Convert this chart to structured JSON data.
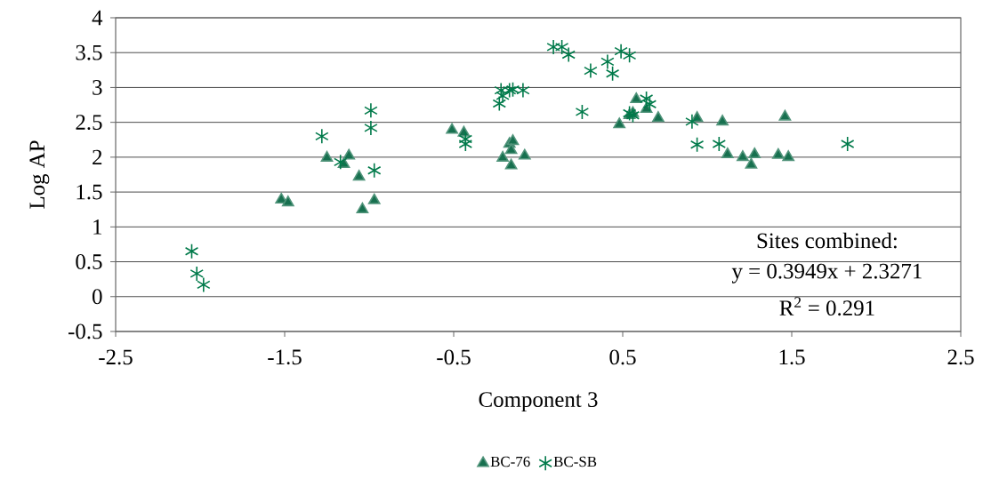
{
  "chart_data": {
    "type": "scatter",
    "xlabel": "Component 3",
    "ylabel": "Log AP",
    "xlim": [
      -2.5,
      2.5
    ],
    "xticks": [
      -2.5,
      -1.5,
      -0.5,
      0.5,
      1.5,
      2.5
    ],
    "ylim": [
      -0.5,
      4
    ],
    "yticks": [
      -0.5,
      0,
      0.5,
      1,
      1.5,
      2,
      2.5,
      3,
      3.5,
      4
    ],
    "grid": "y",
    "legend": "bottom",
    "annotations": [
      "Sites combined:",
      "y = 0.3949x + 2.3271",
      "R$^{2}$ = 0.291"
    ],
    "series": [
      {
        "name": "BC-76",
        "color": "#17704f",
        "marker": "triangle",
        "x": [
          -1.52,
          -1.48,
          -1.25,
          -1.15,
          -1.12,
          -1.06,
          -1.04,
          -0.97,
          -0.51,
          -0.44,
          -0.17,
          -0.15,
          -0.16,
          -0.21,
          -0.16,
          -0.08,
          0.48,
          0.58,
          0.56,
          0.64,
          0.71,
          0.54,
          0.94,
          1.09,
          1.46,
          1.12,
          1.21,
          1.28,
          1.26,
          1.42,
          1.48
        ],
        "values": [
          1.39,
          1.35,
          1.99,
          1.9,
          2.02,
          1.72,
          1.25,
          1.38,
          2.39,
          2.35,
          2.19,
          2.23,
          2.1,
          1.99,
          1.88,
          2.02,
          2.47,
          2.83,
          2.63,
          2.69,
          2.56,
          2.6,
          2.56,
          2.51,
          2.58,
          2.04,
          2.0,
          2.04,
          1.89,
          2.03,
          2.0
        ]
      },
      {
        "name": "BC-SB",
        "color": "#007a4a",
        "marker": "cross",
        "x": [
          -2.05,
          -2.02,
          -1.98,
          -1.28,
          -1.17,
          -0.99,
          -0.99,
          -0.97,
          -0.43,
          -0.43,
          -0.23,
          -0.22,
          -0.17,
          -0.15,
          -0.09,
          -0.21,
          0.09,
          0.14,
          0.18,
          0.31,
          0.41,
          0.44,
          0.49,
          0.54,
          0.26,
          0.64,
          0.66,
          0.56,
          0.54,
          0.91,
          0.94,
          1.07,
          1.83
        ],
        "values": [
          0.65,
          0.33,
          0.17,
          2.3,
          1.93,
          2.67,
          2.42,
          1.81,
          2.26,
          2.19,
          2.77,
          2.96,
          2.96,
          2.97,
          2.96,
          2.88,
          3.58,
          3.58,
          3.47,
          3.24,
          3.37,
          3.2,
          3.52,
          3.46,
          2.65,
          2.84,
          2.76,
          2.6,
          2.63,
          2.51,
          2.18,
          2.19,
          2.19
        ]
      }
    ]
  }
}
